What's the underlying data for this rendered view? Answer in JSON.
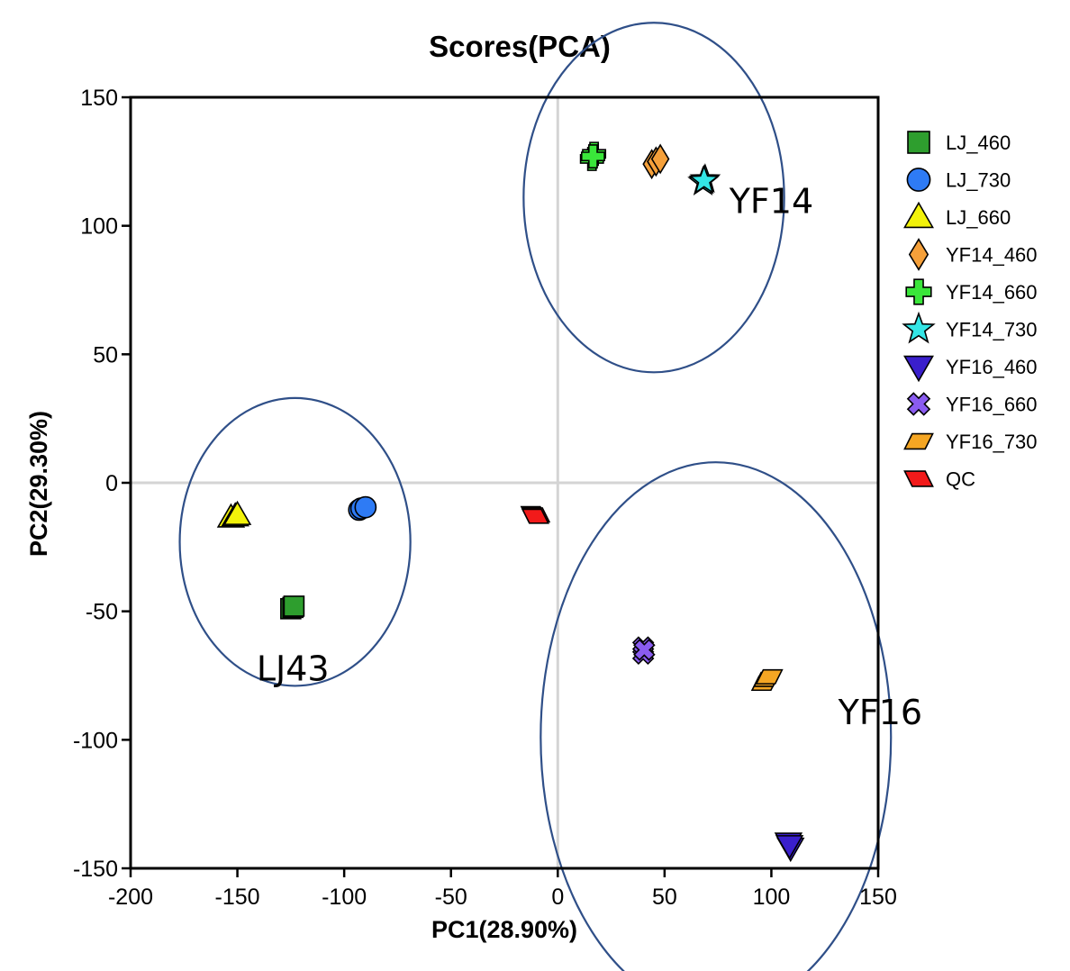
{
  "chart_data": {
    "type": "scatter",
    "title": "Scores(PCA)",
    "xlabel": "PC1(28.90%)",
    "ylabel": "PC2(29.30%)",
    "xlim": [
      -200,
      150
    ],
    "ylim": [
      -150,
      150
    ],
    "xticks": [
      -200,
      -150,
      -100,
      -50,
      0,
      50,
      100,
      150
    ],
    "yticks": [
      150,
      100,
      50,
      0,
      -50,
      -100,
      -150
    ],
    "zero_lines": true,
    "legend_position": "right",
    "series": [
      {
        "name": "LJ_460",
        "marker": "square",
        "color": "#2E9E2E",
        "points": [
          [
            -125,
            -49
          ],
          [
            -124,
            -48.5
          ],
          [
            -123.5,
            -48
          ]
        ]
      },
      {
        "name": "LJ_730",
        "marker": "circle",
        "color": "#2E7BF5",
        "points": [
          [
            -93,
            -10.5
          ],
          [
            -92,
            -10
          ],
          [
            -90,
            -9.5
          ]
        ]
      },
      {
        "name": "LJ_660",
        "marker": "triangle-up",
        "color": "#F2F20A",
        "points": [
          [
            -153,
            -13.5
          ],
          [
            -151,
            -13
          ],
          [
            -150,
            -12.5
          ]
        ]
      },
      {
        "name": "YF14_460",
        "marker": "diamond",
        "color": "#F5A03A",
        "points": [
          [
            44,
            124
          ],
          [
            46,
            125
          ],
          [
            48,
            126
          ]
        ]
      },
      {
        "name": "YF14_660",
        "marker": "plus",
        "color": "#3AE63A",
        "points": [
          [
            16,
            126
          ],
          [
            17,
            128
          ],
          [
            16.5,
            127
          ]
        ]
      },
      {
        "name": "YF14_730",
        "marker": "star",
        "color": "#33E6E6",
        "points": [
          [
            68,
            117
          ],
          [
            69,
            118
          ],
          [
            68.5,
            117.5
          ]
        ]
      },
      {
        "name": "YF16_460",
        "marker": "triangle-down",
        "color": "#3A1FCC",
        "points": [
          [
            108,
            -140
          ],
          [
            109,
            -142
          ],
          [
            108.5,
            -141
          ]
        ]
      },
      {
        "name": "YF16_660",
        "marker": "x",
        "color": "#8A5CF0",
        "points": [
          [
            40,
            -64
          ],
          [
            40,
            -66.5
          ],
          [
            40.5,
            -65
          ]
        ]
      },
      {
        "name": "YF16_730",
        "marker": "parallelogram",
        "color": "#F5A623",
        "points": [
          [
            97,
            -78
          ],
          [
            98,
            -76.5
          ],
          [
            99,
            -75.5
          ]
        ]
      },
      {
        "name": "QC",
        "marker": "parallelogram-down",
        "color": "#F21A1A",
        "points": [
          [
            -11,
            -12
          ],
          [
            -10,
            -12.5
          ],
          [
            -10.5,
            -13
          ]
        ]
      }
    ],
    "groups": [
      {
        "label": "YF14",
        "cx": 45,
        "cy": 111,
        "rx": 61,
        "ry": 68,
        "label_at": [
          100,
          105
        ]
      },
      {
        "label": "LJ43",
        "cx": -123,
        "cy": -23,
        "rx": 54,
        "ry": 56,
        "label_at": [
          -124,
          -77
        ]
      },
      {
        "label": "YF16",
        "cx": 74,
        "cy": -99,
        "rx": 82,
        "ry": 107,
        "label_at": [
          151,
          -94
        ]
      }
    ]
  }
}
